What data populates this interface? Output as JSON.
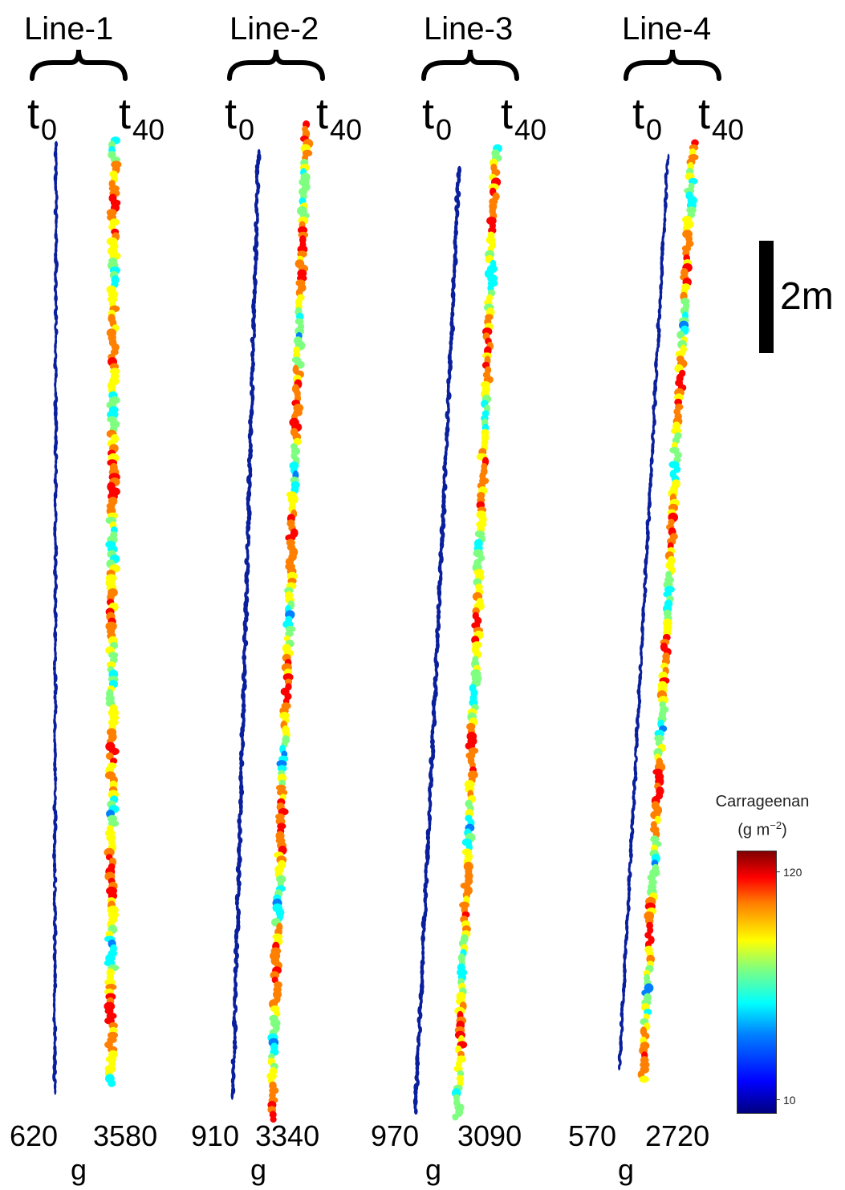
{
  "lines": [
    {
      "title": "Line-1",
      "t0_base": "t",
      "t0_sub": "0",
      "t40_base": "t",
      "t40_sub": "40",
      "weight_t0": "620",
      "weight_t40": "3580",
      "weight_unit": "g"
    },
    {
      "title": "Line-2",
      "t0_base": "t",
      "t0_sub": "0",
      "t40_base": "t",
      "t40_sub": "40",
      "weight_t0": "910",
      "weight_t40": "3340",
      "weight_unit": "g"
    },
    {
      "title": "Line-3",
      "t0_base": "t",
      "t0_sub": "0",
      "t40_base": "t",
      "t40_sub": "40",
      "weight_t0": "970",
      "weight_t40": "3090",
      "weight_unit": "g"
    },
    {
      "title": "Line-4",
      "t0_base": "t",
      "t0_sub": "0",
      "t40_base": "t",
      "t40_sub": "40",
      "weight_t0": "570",
      "weight_t40": "2720",
      "weight_unit": "g"
    }
  ],
  "scale_bar": {
    "label": "2m"
  },
  "colorbar": {
    "title": "Carrageenan",
    "unit_base": "(g m",
    "unit_sup": "−2",
    "unit_close": ")",
    "max_label": "120",
    "min_label": "10",
    "colors": [
      "#000080",
      "#0000ff",
      "#0080ff",
      "#00ffff",
      "#7fff80",
      "#ffff00",
      "#ff8000",
      "#ff0000",
      "#800000"
    ]
  },
  "colors": {
    "t0_strip": "#0a1f9c",
    "background": "#ffffff"
  }
}
